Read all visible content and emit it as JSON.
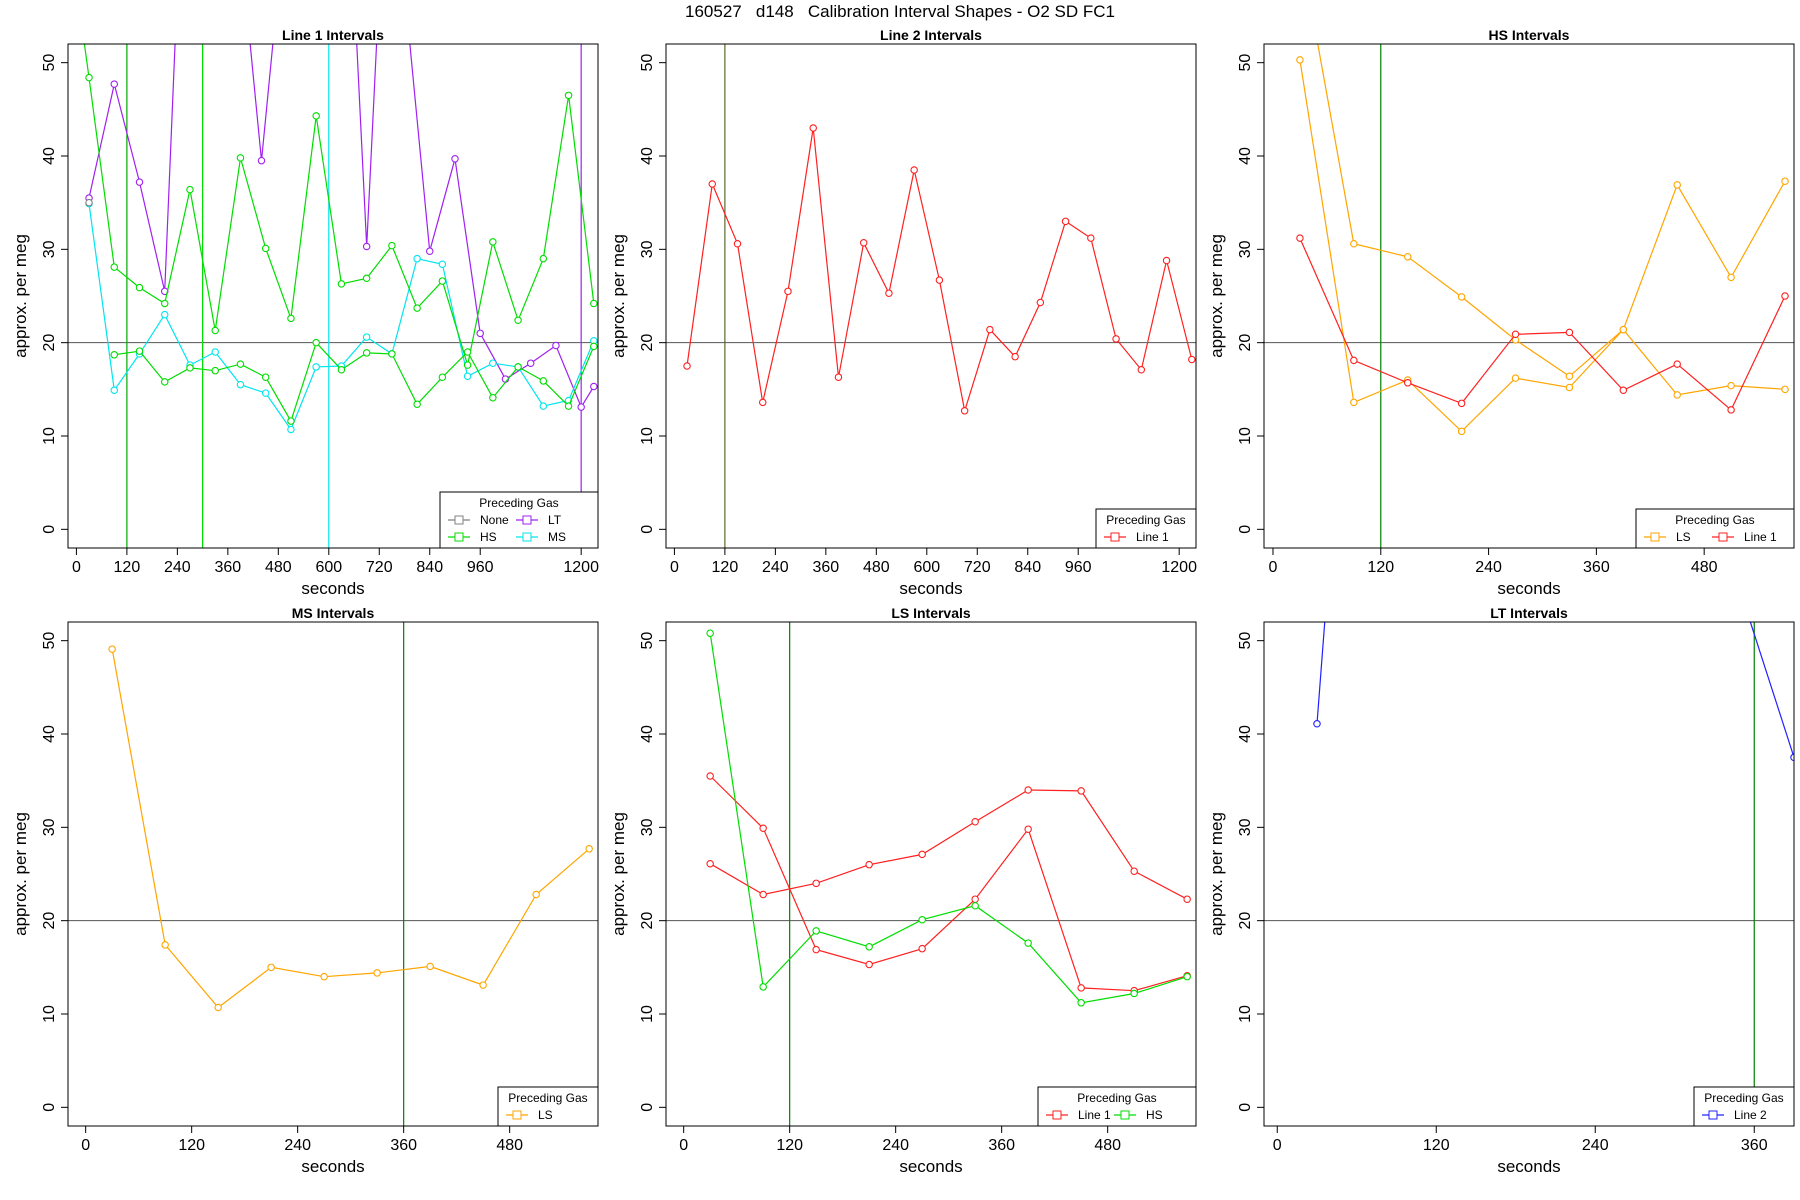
{
  "page_title": "160527   d148   Calibration Interval Shapes - O2 SD FC1",
  "chart_data": [
    {
      "type": "line",
      "title": "Line 1 Intervals",
      "xlabel": "seconds",
      "ylabel": "approx. per meg",
      "xlim": [
        -20,
        1240
      ],
      "ylim": [
        -2,
        52
      ],
      "xticks": [
        0,
        120,
        240,
        360,
        480,
        600,
        720,
        840,
        960,
        1200
      ],
      "yticks": [
        0,
        10,
        20,
        30,
        40,
        50
      ],
      "hline": 20,
      "vlines": [
        {
          "x": 120,
          "color": "#00aa00"
        },
        {
          "x": 300,
          "color": "#00dd00"
        },
        {
          "x": 600,
          "color": "#00e5ee"
        },
        {
          "x": 1200,
          "color": "#a020f0"
        }
      ],
      "legend": {
        "title": "Preceding Gas",
        "position": "bottom-right",
        "columns": 2,
        "entries": [
          {
            "label": "None",
            "color": "#808080"
          },
          {
            "label": "LT",
            "color": "#a020f0"
          },
          {
            "label": "HS",
            "color": "#00dd00"
          },
          {
            "label": "MS",
            "color": "#00e5ee"
          }
        ]
      },
      "series": [
        {
          "name": "LT",
          "color": "#a020f0",
          "x": [
            30,
            90,
            150,
            210,
            240,
            400,
            440,
            480,
            660,
            690,
            720,
            780,
            840,
            900,
            960,
            1020,
            1080,
            1140,
            1200,
            1230
          ],
          "y": [
            35.5,
            47.7,
            37.2,
            25.5,
            58,
            58,
            39.5,
            58,
            58,
            30.3,
            58,
            58,
            29.8,
            39.7,
            21,
            16.1,
            17.8,
            19.7,
            13.1,
            15.3
          ]
        },
        {
          "name": "MS",
          "color": "#00e5ee",
          "x": [
            30,
            90,
            150,
            210,
            270,
            330,
            390,
            450,
            510,
            570,
            630,
            690,
            750,
            810,
            870,
            930,
            990,
            1050,
            1110,
            1170,
            1230
          ],
          "y": [
            34.9,
            14.9,
            18.8,
            23,
            17.6,
            19,
            15.5,
            14.6,
            10.7,
            17.4,
            17.5,
            20.6,
            18.8,
            29,
            28.4,
            16.4,
            17.8,
            17.4,
            13.2,
            13.8,
            20.2
          ]
        },
        {
          "name": "HS",
          "color": "#00dd00",
          "x": [
            10,
            30,
            90,
            150,
            210,
            270,
            330,
            390,
            450,
            510,
            570,
            630,
            690,
            750,
            810,
            870,
            930,
            990,
            1050,
            1110,
            1170,
            1230
          ],
          "y": [
            55,
            48.4,
            28.1,
            25.9,
            24.2,
            36.4,
            21.3,
            39.8,
            30.1,
            22.6,
            44.3,
            26.3,
            26.9,
            30.4,
            23.7,
            26.6,
            17.6,
            30.8,
            22.4,
            29,
            46.5,
            24.2
          ]
        },
        {
          "name": "HS",
          "color": "#00dd00",
          "x": [
            90,
            150,
            210,
            270,
            330,
            390,
            450,
            510,
            570,
            630,
            690,
            750,
            810,
            870,
            930,
            990,
            1050,
            1110,
            1170,
            1230
          ],
          "y": [
            18.7,
            19.1,
            15.8,
            17.3,
            17,
            17.7,
            16.3,
            11.6,
            20,
            17.1,
            18.9,
            18.8,
            13.4,
            16.3,
            19,
            14.1,
            17.4,
            15.9,
            13.2,
            19.6
          ]
        },
        {
          "name": "None",
          "color": "#808080",
          "x": [
            30
          ],
          "y": [
            35
          ]
        }
      ]
    },
    {
      "type": "line",
      "title": "Line 2 Intervals",
      "xlabel": "seconds",
      "ylabel": "approx. per meg",
      "xlim": [
        -20,
        1240
      ],
      "ylim": [
        -2,
        52
      ],
      "xticks": [
        0,
        120,
        240,
        360,
        480,
        600,
        720,
        840,
        960,
        1200
      ],
      "yticks": [
        0,
        10,
        20,
        30,
        40,
        50
      ],
      "hline": 20,
      "vlines": [
        {
          "x": 120,
          "color": "#556b2f"
        }
      ],
      "legend": {
        "title": "Preceding Gas",
        "position": "bottom-right",
        "columns": 1,
        "entries": [
          {
            "label": "Line 1",
            "color": "#ff2020"
          }
        ]
      },
      "series": [
        {
          "name": "Line 1",
          "color": "#ff2020",
          "x": [
            30,
            90,
            150,
            210,
            270,
            330,
            390,
            450,
            510,
            570,
            630,
            690,
            750,
            810,
            870,
            930,
            990,
            1050,
            1110,
            1170,
            1230
          ],
          "y": [
            17.5,
            37,
            30.6,
            13.6,
            25.5,
            43,
            16.3,
            30.7,
            25.3,
            38.5,
            26.7,
            12.7,
            21.4,
            18.5,
            24.3,
            33,
            31.2,
            20.4,
            17.1,
            28.8,
            18.2
          ]
        }
      ]
    },
    {
      "type": "line",
      "title": "HS Intervals",
      "xlabel": "seconds",
      "ylabel": "approx. per meg",
      "xlim": [
        -10,
        580
      ],
      "ylim": [
        -2,
        52
      ],
      "xticks": [
        0,
        120,
        240,
        360,
        480
      ],
      "yticks": [
        0,
        10,
        20,
        30,
        40,
        50
      ],
      "hline": 20,
      "vlines": [
        {
          "x": 120,
          "color": "#008000"
        }
      ],
      "legend": {
        "title": "Preceding Gas",
        "position": "bottom-right",
        "columns": 2,
        "entries": [
          {
            "label": "LS",
            "color": "#ffa500"
          },
          {
            "label": "Line 1",
            "color": "#ff2020"
          }
        ]
      },
      "series": [
        {
          "name": "LS",
          "color": "#ffa500",
          "x": [
            30,
            90,
            150,
            210,
            270,
            330,
            390,
            450,
            510,
            570
          ],
          "y": [
            50.3,
            13.6,
            16,
            10.5,
            16.2,
            15.2,
            21.4,
            14.4,
            15.4,
            15
          ]
        },
        {
          "name": "LS",
          "color": "#ffa500",
          "x": [
            48,
            90,
            150,
            210,
            270,
            330,
            390,
            450,
            510,
            570
          ],
          "y": [
            53,
            30.6,
            29.2,
            24.9,
            20.3,
            16.4,
            21.4,
            36.9,
            27,
            37.3
          ]
        },
        {
          "name": "Line 1",
          "color": "#ff2020",
          "x": [
            30,
            90,
            150,
            210,
            270,
            330,
            390,
            450,
            510,
            570
          ],
          "y": [
            31.2,
            18.1,
            15.7,
            13.5,
            20.9,
            21.1,
            14.9,
            17.7,
            12.8,
            25
          ]
        }
      ]
    },
    {
      "type": "line",
      "title": "MS Intervals",
      "xlabel": "seconds",
      "ylabel": "approx. per meg",
      "xlim": [
        -20,
        580
      ],
      "ylim": [
        -2,
        52
      ],
      "xticks": [
        0,
        120,
        240,
        360,
        480
      ],
      "yticks": [
        0,
        10,
        20,
        30,
        40,
        50
      ],
      "hline": 20,
      "vlines": [
        {
          "x": 360,
          "color": "#008000"
        }
      ],
      "legend": {
        "title": "Preceding Gas",
        "position": "bottom-right",
        "columns": 1,
        "entries": [
          {
            "label": "LS",
            "color": "#ffa500"
          }
        ]
      },
      "series": [
        {
          "name": "LS",
          "color": "#ffa500",
          "x": [
            30,
            90,
            150,
            210,
            270,
            330,
            390,
            450,
            510,
            570
          ],
          "y": [
            49.1,
            17.4,
            10.7,
            15,
            14,
            14.4,
            15.1,
            13.1,
            22.8,
            27.7
          ]
        }
      ]
    },
    {
      "type": "line",
      "title": "LS Intervals",
      "xlabel": "seconds",
      "ylabel": "approx. per meg",
      "xlim": [
        -20,
        580
      ],
      "ylim": [
        -2,
        52
      ],
      "xticks": [
        0,
        120,
        240,
        360,
        480
      ],
      "yticks": [
        0,
        10,
        20,
        30,
        40,
        50
      ],
      "hline": 20,
      "vlines": [
        {
          "x": 120,
          "color": "#008000"
        }
      ],
      "legend": {
        "title": "Preceding Gas",
        "position": "bottom-right",
        "columns": 2,
        "entries": [
          {
            "label": "Line 1",
            "color": "#ff2020"
          },
          {
            "label": "HS",
            "color": "#00dd00"
          }
        ]
      },
      "series": [
        {
          "name": "Line 1",
          "color": "#ff2020",
          "x": [
            30,
            90,
            150,
            210,
            270,
            330,
            390,
            450,
            510,
            570
          ],
          "y": [
            35.5,
            29.9,
            16.9,
            15.3,
            17,
            22.3,
            29.8,
            12.8,
            12.5,
            14.1
          ]
        },
        {
          "name": "Line 1",
          "color": "#ff2020",
          "x": [
            30,
            90,
            150,
            210,
            270,
            330,
            390,
            450,
            510,
            570
          ],
          "y": [
            26.1,
            22.8,
            24,
            26,
            27.1,
            30.6,
            34,
            33.9,
            25.3,
            22.3
          ]
        },
        {
          "name": "HS",
          "color": "#00dd00",
          "x": [
            30,
            90,
            150,
            210,
            270,
            330,
            390,
            450,
            510,
            570
          ],
          "y": [
            50.8,
            12.9,
            18.9,
            17.2,
            20.1,
            21.6,
            17.6,
            11.2,
            12.2,
            14
          ]
        }
      ]
    },
    {
      "type": "line",
      "title": "LT Intervals",
      "xlabel": "seconds",
      "ylabel": "approx. per meg",
      "xlim": [
        -10,
        390
      ],
      "ylim": [
        -2,
        52
      ],
      "xticks": [
        0,
        120,
        240,
        360
      ],
      "yticks": [
        0,
        10,
        20,
        30,
        40,
        50
      ],
      "hline": 20,
      "vlines": [
        {
          "x": 360,
          "color": "#008000"
        }
      ],
      "legend": {
        "title": "Preceding Gas",
        "position": "bottom-right",
        "columns": 1,
        "entries": [
          {
            "label": "Line 2",
            "color": "#2020ff"
          }
        ]
      },
      "series": [
        {
          "name": "Line 2",
          "color": "#2020ff",
          "x": [
            30,
            38
          ],
          "y": [
            41.1,
            56
          ]
        },
        {
          "name": "Line 2",
          "color": "#2020ff",
          "x": [
            348,
            390
          ],
          "y": [
            56,
            37.5
          ]
        }
      ]
    }
  ]
}
